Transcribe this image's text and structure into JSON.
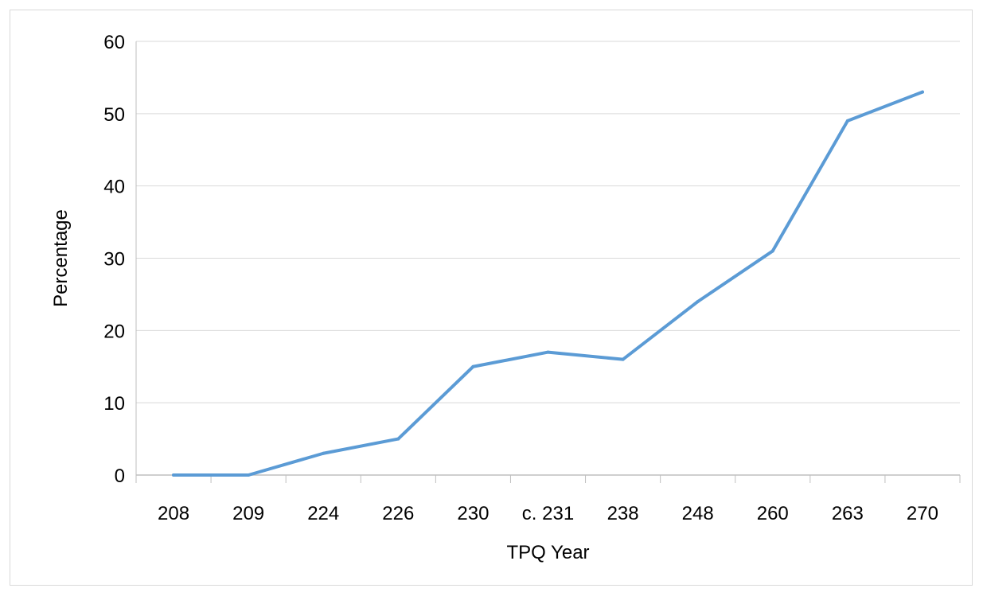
{
  "chart_data": {
    "type": "line",
    "title": "",
    "xlabel": "TPQ Year",
    "ylabel": "Percentage",
    "categories": [
      "208",
      "209",
      "224",
      "226",
      "230",
      "c. 231",
      "238",
      "248",
      "260",
      "263",
      "270"
    ],
    "series": [
      {
        "values": [
          0,
          0,
          3,
          5,
          15,
          17,
          16,
          24,
          31,
          49,
          53
        ],
        "color": "#5b9bd5"
      }
    ],
    "ylim": [
      0,
      60
    ],
    "yticks": [
      0,
      10,
      20,
      30,
      40,
      50,
      60
    ],
    "grid": true,
    "legend": "none"
  }
}
